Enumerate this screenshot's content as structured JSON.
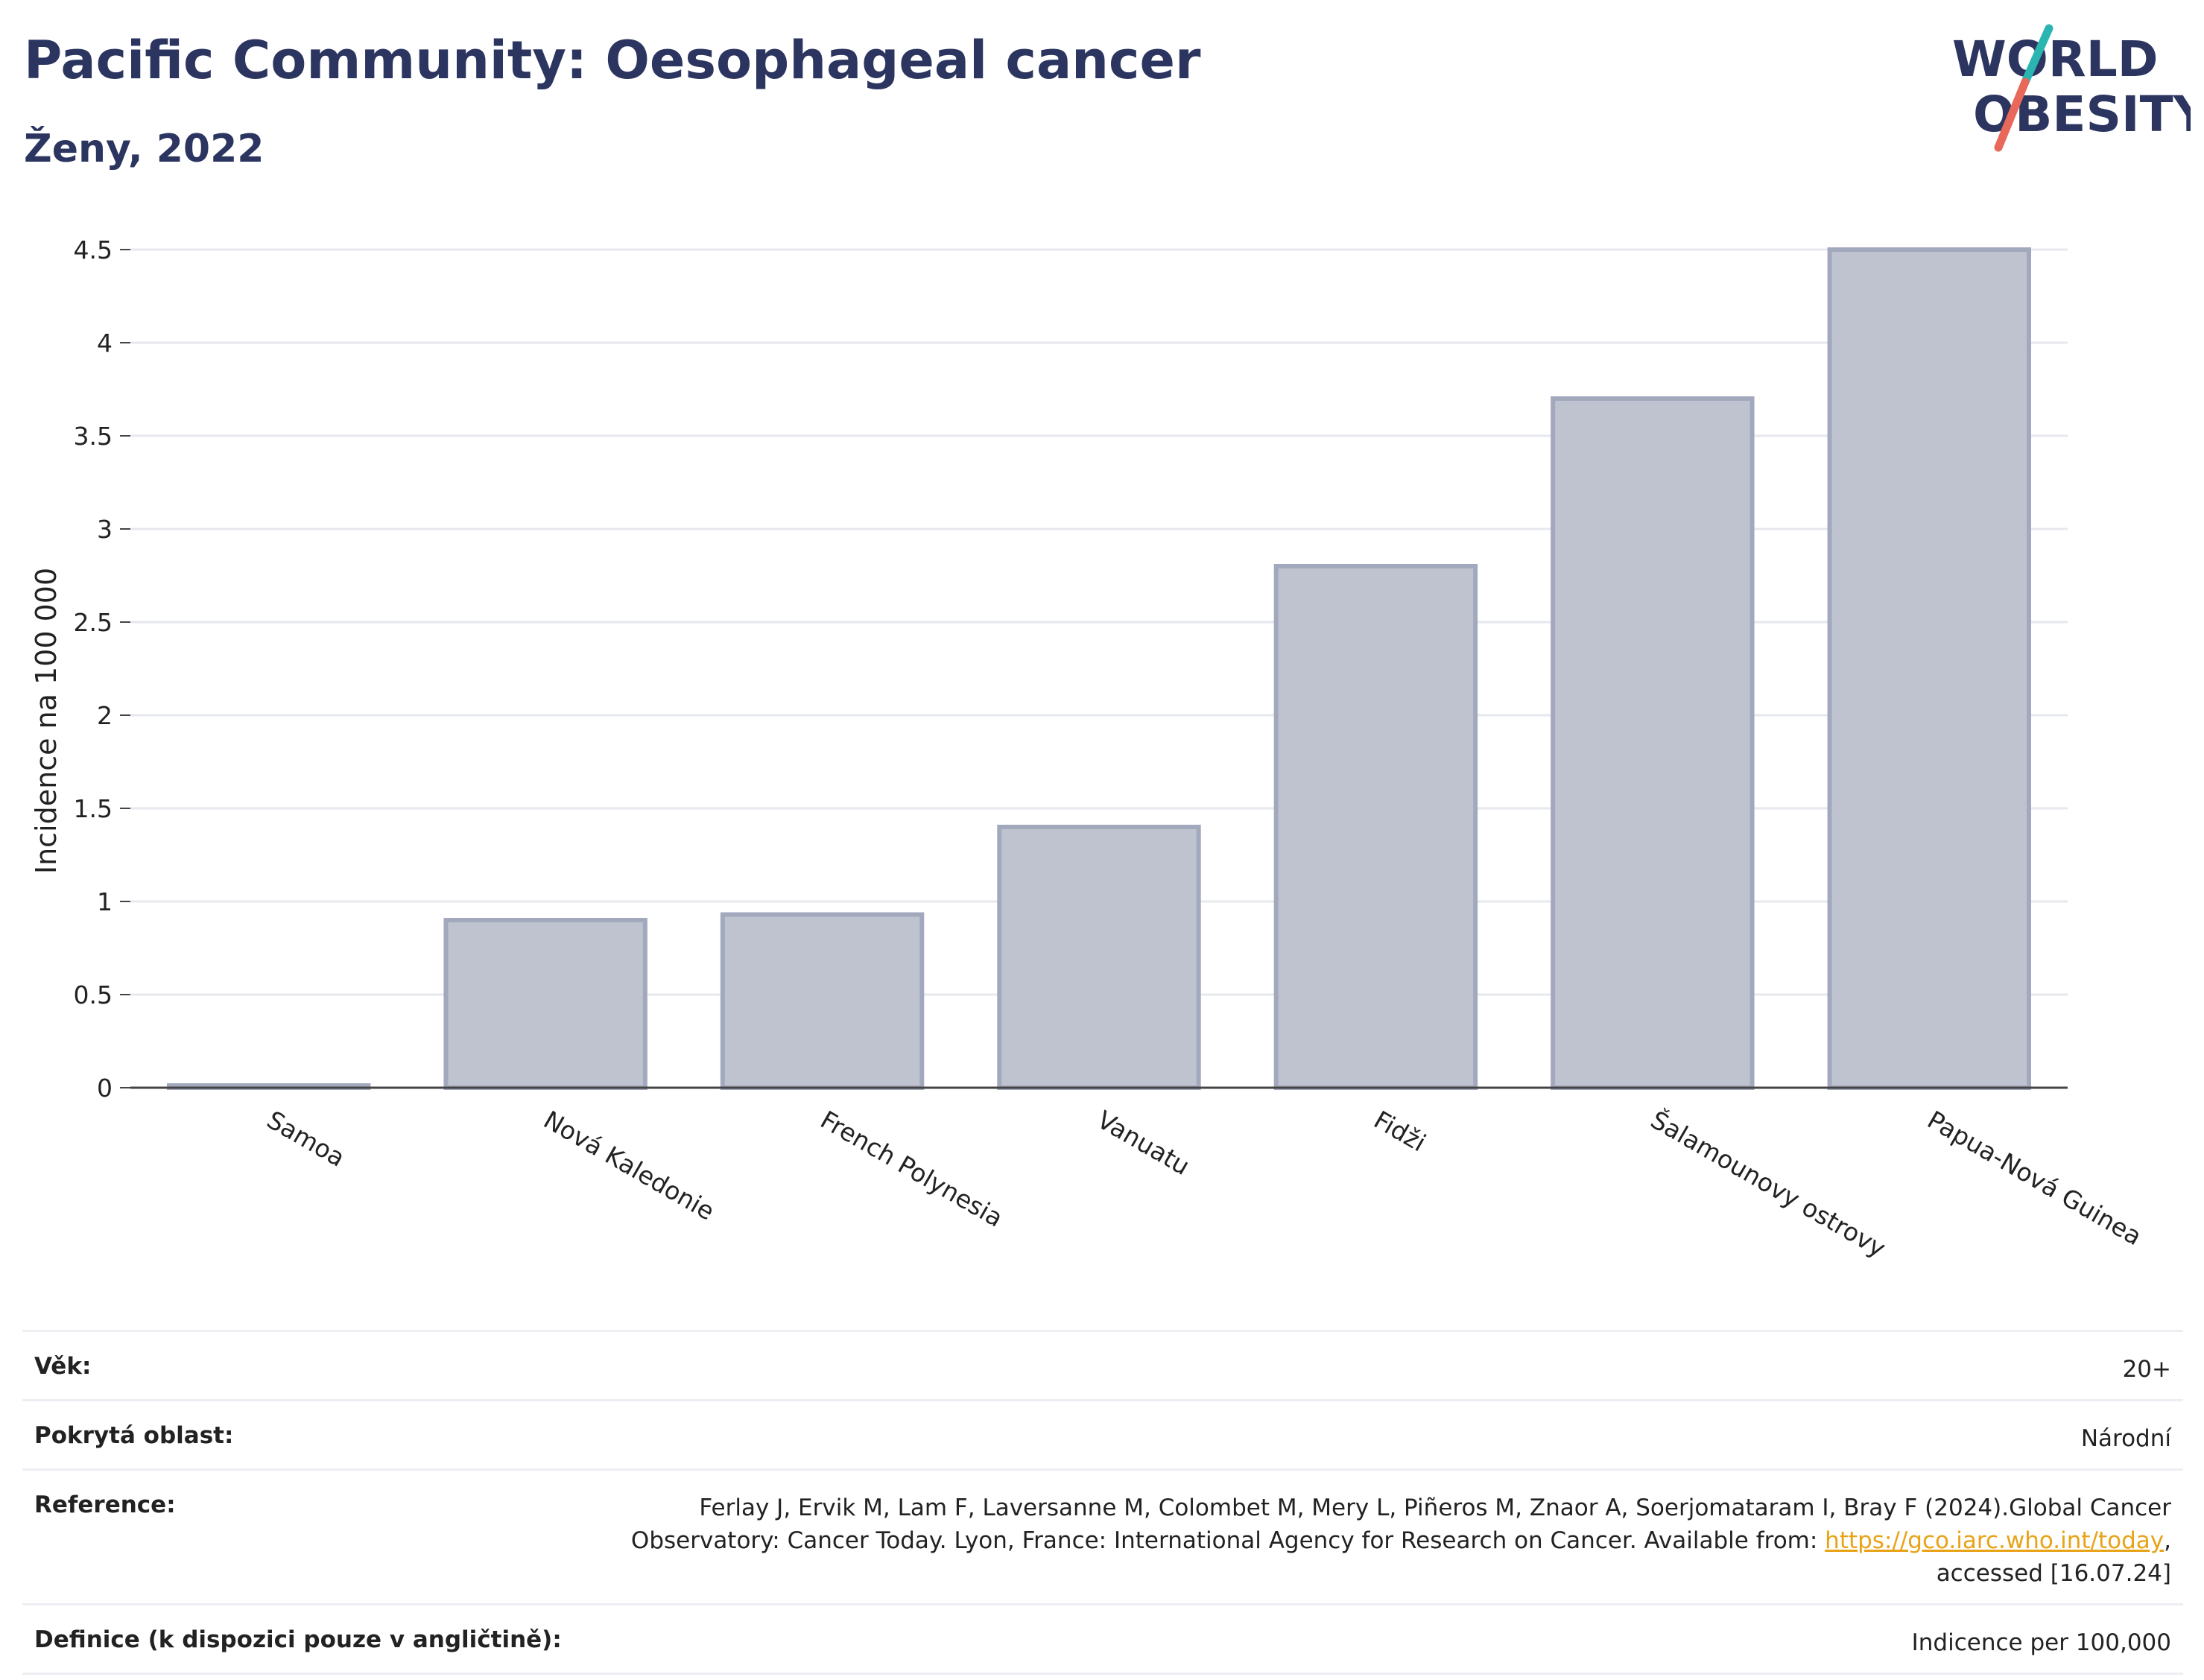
{
  "header": {
    "title": "Pacific Community: Oesophageal cancer",
    "subtitle": "Ženy, 2022"
  },
  "logo": {
    "line1": "WORLD",
    "line2": "OBESITY",
    "colors": {
      "text": "#2b3560",
      "slash_top": "#2bb5b0",
      "slash_bottom": "#e8685a"
    }
  },
  "chart_data": {
    "type": "bar",
    "categories": [
      "Samoa",
      "Nová Kaledonie",
      "French Polynesia",
      "Vanuatu",
      "Fidži",
      "Šalamounovy ostrovy",
      "Papua-Nová Guinea"
    ],
    "values": [
      0.01,
      0.9,
      0.93,
      1.4,
      2.8,
      3.7,
      4.5
    ],
    "ylabel": "Incidence na 100 000",
    "xlabel": "",
    "ylim": [
      0,
      4.5
    ],
    "yticks": [
      "0",
      "0.5",
      "1",
      "1.5",
      "2",
      "2.5",
      "3",
      "3.5",
      "4",
      "4.5"
    ],
    "grid": true,
    "bar_fill": "#bfc3cf",
    "bar_stroke": "#a3a9bd"
  },
  "meta": {
    "age_label": "Věk:",
    "age_value": "20+",
    "coverage_label": "Pokrytá oblast:",
    "coverage_value": "Národní",
    "reference_label": "Reference:",
    "reference_text_1": "Ferlay J, Ervik M, Lam F, Laversanne M, Colombet M, Mery L, Piñeros M, Znaor A, Soerjomataram I, Bray F (2024).Global Cancer Observatory: Cancer Today. Lyon, France: International Agency for Research on Cancer. Available from: ",
    "reference_link": "https://gco.iarc.who.int/today",
    "reference_text_2": ", accessed [16.07.24]",
    "definition_label": "Definice (k dispozici pouze v angličtině):",
    "definition_value": "Indicence per 100,000"
  }
}
